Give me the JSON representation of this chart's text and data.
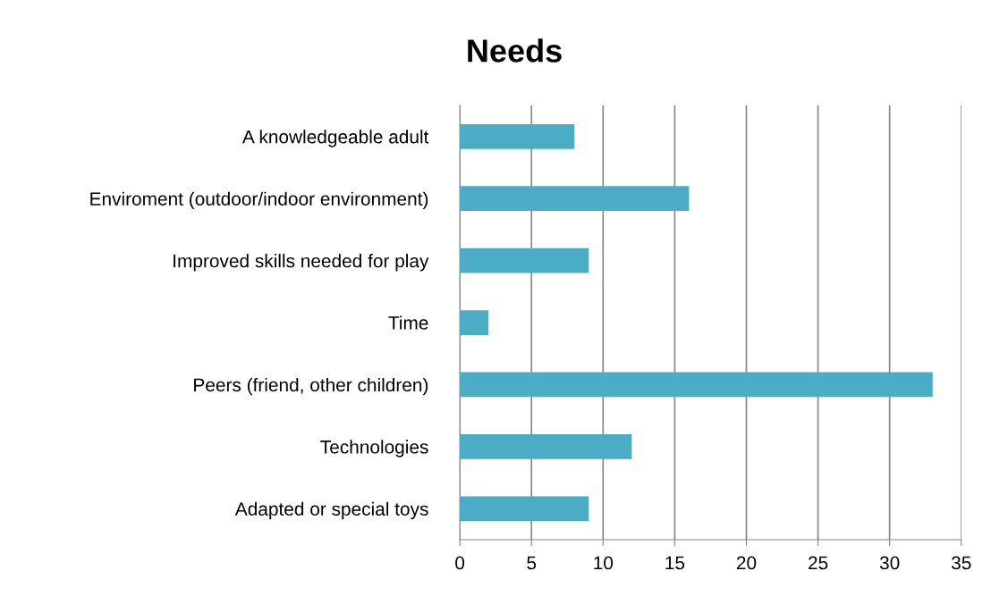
{
  "chart_data": {
    "type": "bar",
    "title": "Needs",
    "orientation": "horizontal",
    "categories": [
      "A knowledgeable adult",
      "Enviroment (outdoor/indoor environment)",
      "Improved skills needed for play",
      "Time",
      "Peers (friend, other children)",
      "Technologies",
      "Adapted or special toys"
    ],
    "values": [
      8,
      16,
      9,
      2,
      33,
      12,
      9
    ],
    "color": "#4bacc6",
    "xlim": [
      0,
      35
    ],
    "xticks": [
      0,
      5,
      10,
      15,
      20,
      25,
      30,
      35
    ],
    "grid": "x",
    "legend": false
  }
}
